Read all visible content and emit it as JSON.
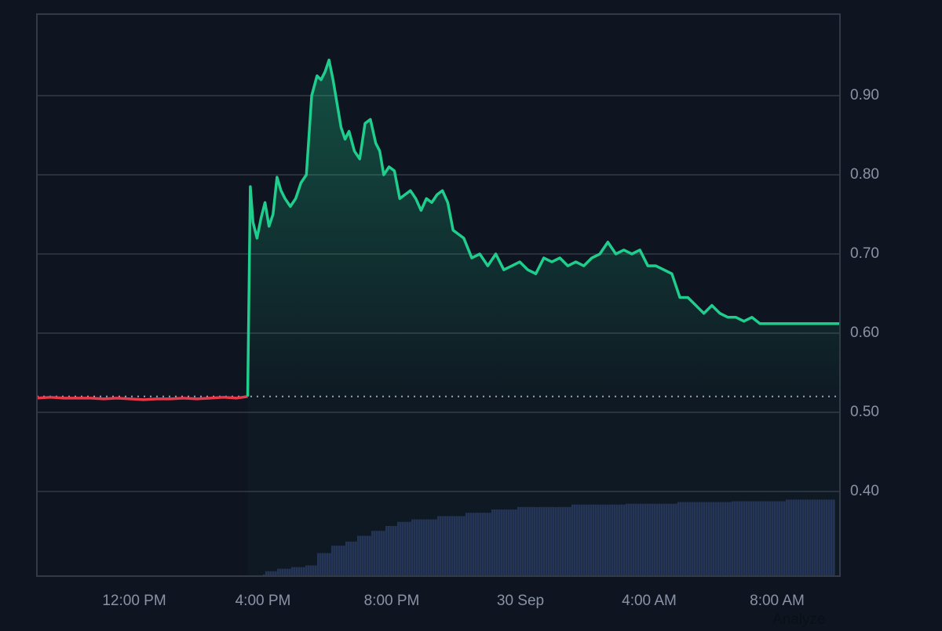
{
  "chart_data": {
    "type": "area",
    "title": "",
    "xlabel": "",
    "ylabel": "",
    "ylim": [
      0.3,
      0.99
    ],
    "grid": true,
    "y_axis_position": "right",
    "y_ticks": [
      "0.90",
      "0.80",
      "0.70",
      "0.60",
      "0.50",
      "0.40"
    ],
    "x_ticks": [
      "12:00 PM",
      "4:00 PM",
      "8:00 PM",
      "30 Sep",
      "4:00 AM",
      "8:00 AM"
    ],
    "baseline": 0.52,
    "colors": {
      "background": "#0e1420",
      "grid": "#2a303c",
      "axis": "#333a47",
      "up_line": "#1fce8c",
      "down_line": "#e8394a",
      "volume": "#263156",
      "tick_text": "#8a93a6"
    },
    "series": [
      {
        "name": "price",
        "x_hours_from_start": [
          0,
          0.5,
          1,
          1.5,
          2,
          2.5,
          3,
          3.5,
          4,
          4.5,
          5,
          5.5,
          6,
          6.5,
          7,
          7.5,
          7.9,
          8.0,
          8.1,
          8.25,
          8.4,
          8.55,
          8.7,
          8.85,
          9.0,
          9.15,
          9.3,
          9.5,
          9.7,
          9.9,
          10.1,
          10.3,
          10.5,
          10.65,
          10.8,
          10.95,
          11.1,
          11.25,
          11.4,
          11.55,
          11.7,
          11.9,
          12.1,
          12.3,
          12.5,
          12.7,
          12.85,
          13.0,
          13.2,
          13.4,
          13.6,
          13.8,
          14.0,
          14.2,
          14.4,
          14.6,
          14.8,
          15.0,
          15.2,
          15.4,
          15.6,
          15.8,
          16.0,
          16.3,
          16.6,
          16.9,
          17.2,
          17.5,
          17.8,
          18.1,
          18.4,
          18.7,
          19.0,
          19.3,
          19.6,
          19.9,
          20.2,
          20.5,
          20.8,
          21.1,
          21.4,
          21.7,
          22.0,
          22.3,
          22.6,
          22.9,
          23.2,
          23.5,
          23.8,
          24.1,
          24.4,
          24.7,
          25.0,
          25.3,
          25.6,
          25.9,
          26.2,
          26.5,
          26.8,
          27.1,
          27.4,
          27.7,
          28.0,
          28.3,
          28.6,
          28.9,
          29.2,
          29.5,
          29.8,
          30.1
        ],
        "values": [
          0.518,
          0.519,
          0.518,
          0.518,
          0.518,
          0.517,
          0.518,
          0.517,
          0.516,
          0.517,
          0.517,
          0.518,
          0.517,
          0.518,
          0.519,
          0.518,
          0.52,
          0.785,
          0.74,
          0.72,
          0.745,
          0.765,
          0.735,
          0.75,
          0.797,
          0.78,
          0.77,
          0.76,
          0.77,
          0.79,
          0.8,
          0.9,
          0.925,
          0.92,
          0.93,
          0.945,
          0.92,
          0.89,
          0.86,
          0.845,
          0.855,
          0.83,
          0.82,
          0.865,
          0.87,
          0.84,
          0.83,
          0.8,
          0.81,
          0.805,
          0.77,
          0.775,
          0.78,
          0.77,
          0.755,
          0.77,
          0.765,
          0.775,
          0.78,
          0.765,
          0.73,
          0.725,
          0.72,
          0.695,
          0.7,
          0.685,
          0.7,
          0.68,
          0.685,
          0.69,
          0.68,
          0.675,
          0.695,
          0.69,
          0.695,
          0.685,
          0.69,
          0.685,
          0.695,
          0.7,
          0.715,
          0.7,
          0.705,
          0.7,
          0.705,
          0.685,
          0.685,
          0.68,
          0.675,
          0.645,
          0.645,
          0.635,
          0.625,
          0.635,
          0.625,
          0.62,
          0.62,
          0.615,
          0.62,
          0.612,
          0.612,
          0.612,
          0.612,
          0.612,
          0.612,
          0.612,
          0.612,
          0.612,
          0.612,
          0.612
        ]
      },
      {
        "name": "volume",
        "x_hours_from_start": [
          8.0,
          8.5,
          9.0,
          9.5,
          10.0,
          10.5,
          11.0,
          11.5,
          12.0,
          12.5,
          13.0,
          13.5,
          14.0,
          15.0,
          16.0,
          17.0,
          18.0,
          19.0,
          20.0,
          21.0,
          22.0,
          24.0,
          26.0,
          28.0,
          30.0
        ],
        "values_relative": [
          0.02,
          0.06,
          0.09,
          0.11,
          0.13,
          0.28,
          0.37,
          0.42,
          0.49,
          0.55,
          0.61,
          0.66,
          0.69,
          0.73,
          0.77,
          0.81,
          0.84,
          0.84,
          0.87,
          0.87,
          0.88,
          0.9,
          0.91,
          0.93,
          0.93
        ]
      }
    ]
  }
}
